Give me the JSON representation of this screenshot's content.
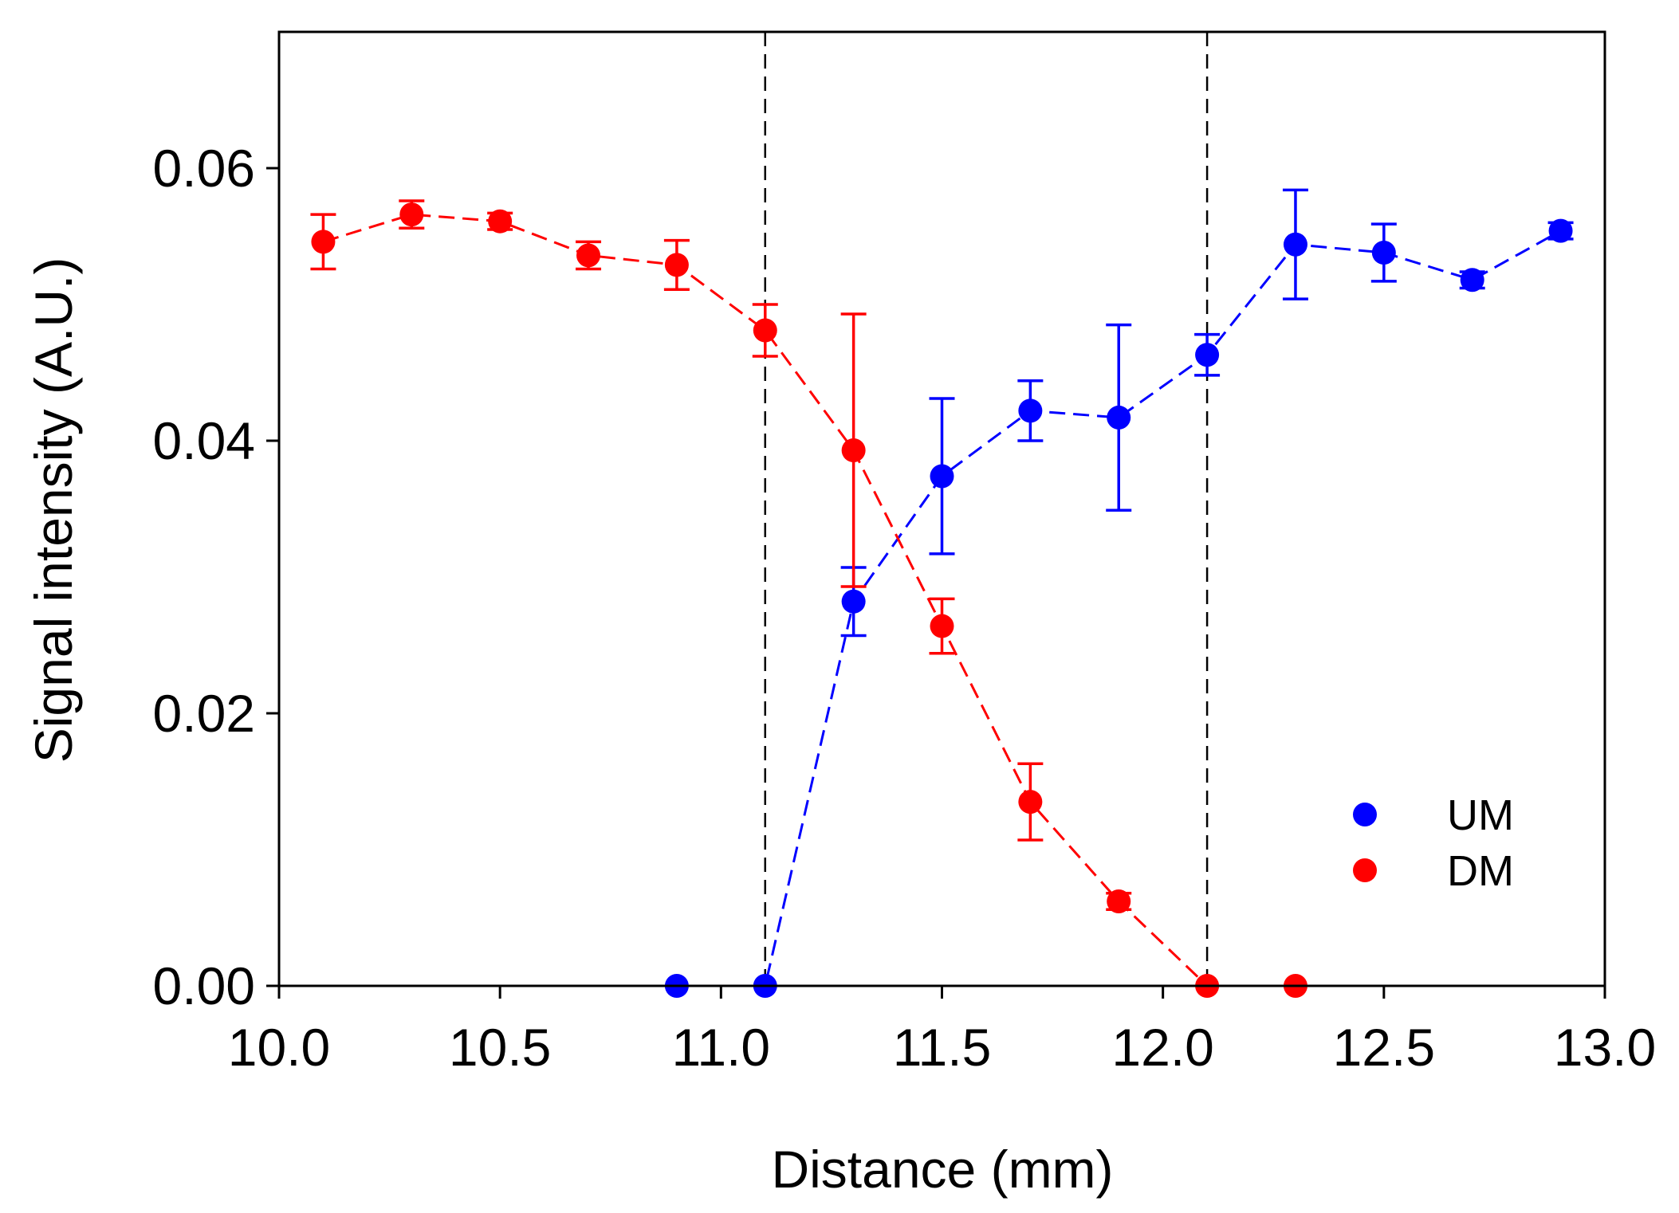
{
  "chart_data": {
    "type": "scatter",
    "title": "",
    "xlabel": "Distance (mm)",
    "ylabel": "Signal intensity (A.U.)",
    "xlim": [
      10.0,
      13.0
    ],
    "ylim": [
      0.0,
      0.07
    ],
    "xticks": [
      10.0,
      10.5,
      11.0,
      11.5,
      12.0,
      12.5,
      13.0
    ],
    "xtick_labels": [
      "10.0",
      "10.5",
      "11.0",
      "11.5",
      "12.0",
      "12.5",
      "13.0"
    ],
    "yticks": [
      0.0,
      0.02,
      0.04,
      0.06
    ],
    "ytick_labels": [
      "0.00",
      "0.02",
      "0.04",
      "0.06"
    ],
    "grid": false,
    "legend_position": "bottom-right",
    "reference_lines_x": [
      11.1,
      12.1
    ],
    "series": [
      {
        "name": "UM",
        "color": "#0000ff",
        "x": [
          10.9,
          11.1,
          11.3,
          11.5,
          11.7,
          11.9,
          12.1,
          12.3,
          12.5,
          12.7,
          12.9
        ],
        "y": [
          0.0,
          0.0,
          0.0282,
          0.0374,
          0.0422,
          0.0417,
          0.0463,
          0.0544,
          0.0538,
          0.0518,
          0.0554
        ],
        "err": [
          0.0,
          0.0,
          0.0025,
          0.0057,
          0.0022,
          0.0068,
          0.0015,
          0.004,
          0.0021,
          0.0006,
          0.0006
        ]
      },
      {
        "name": "DM",
        "color": "#ff0000",
        "x": [
          10.1,
          10.3,
          10.5,
          10.7,
          10.9,
          11.1,
          11.3,
          11.5,
          11.7,
          11.9,
          12.1,
          12.3
        ],
        "y": [
          0.0546,
          0.0566,
          0.0561,
          0.0536,
          0.0529,
          0.0481,
          0.0393,
          0.0264,
          0.0135,
          0.0062,
          0.0,
          0.0
        ],
        "err": [
          0.002,
          0.001,
          0.0006,
          0.001,
          0.0018,
          0.0019,
          0.01,
          0.002,
          0.0028,
          0.0006,
          0.0,
          0.0
        ]
      }
    ]
  }
}
